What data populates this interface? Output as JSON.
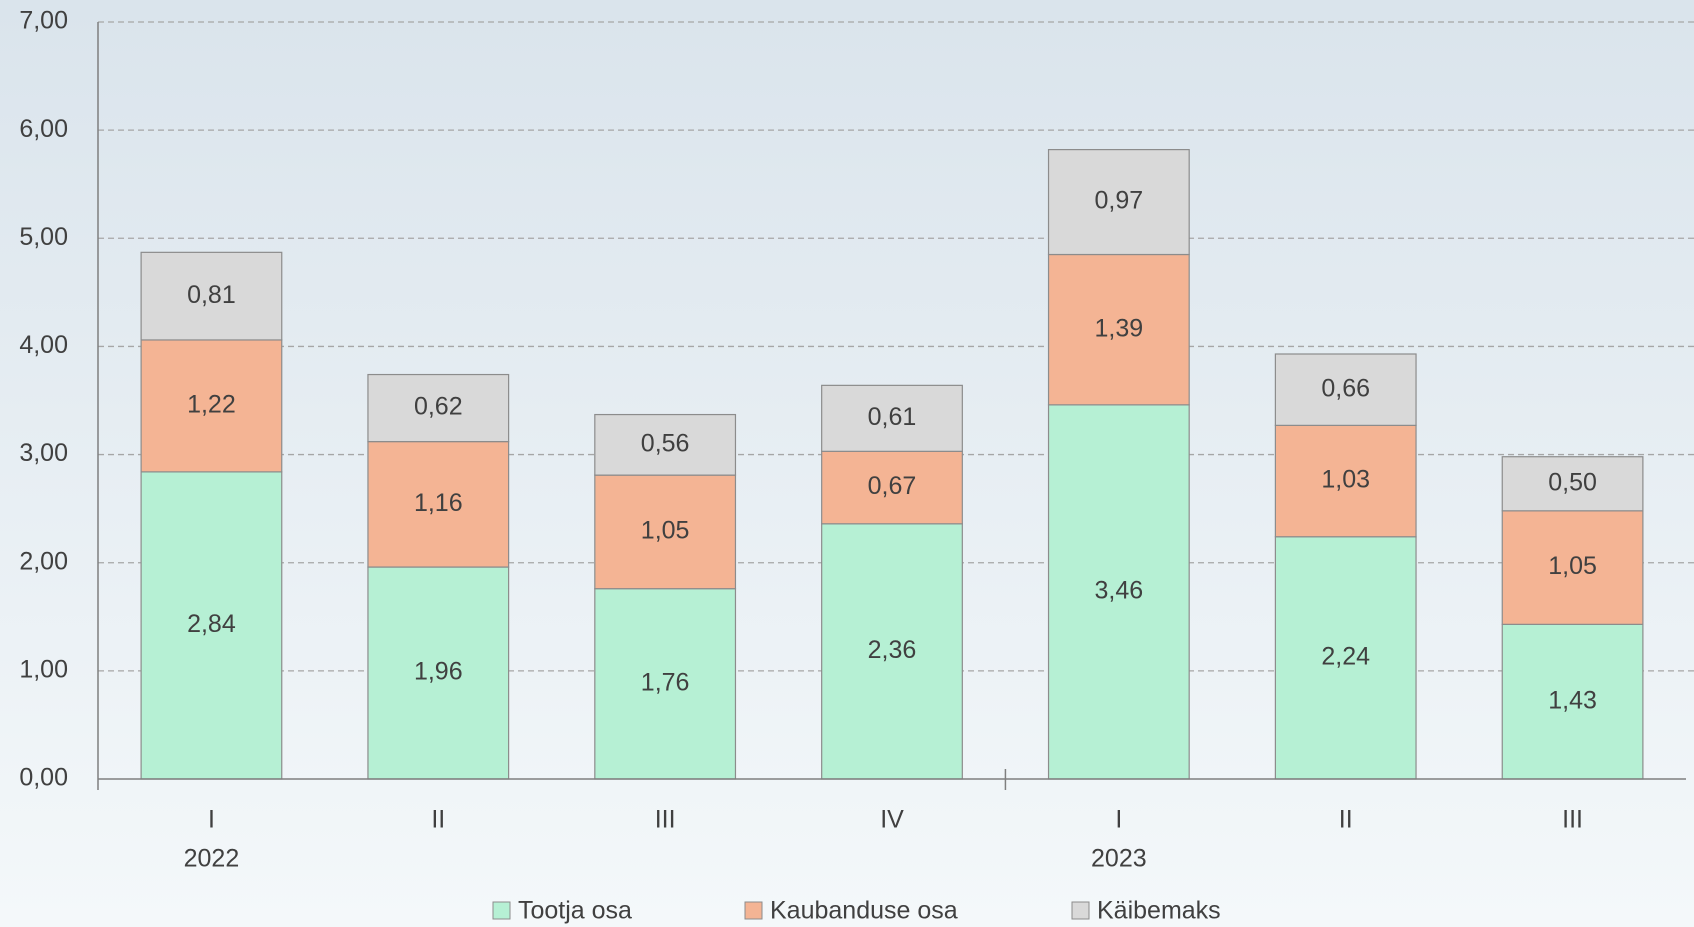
{
  "chart_data": {
    "type": "stacked_bar",
    "categories": [
      "I",
      "II",
      "III",
      "IV",
      "I",
      "II",
      "III"
    ],
    "year_groups": [
      {
        "name": "2022",
        "count": 4
      },
      {
        "name": "2023",
        "count": 3
      }
    ],
    "series": [
      {
        "name": "Tootja osa",
        "color": "#b6f0d4",
        "values": [
          2.84,
          1.96,
          1.76,
          2.36,
          3.46,
          2.24,
          1.43
        ],
        "value_labels": [
          "2,84",
          "1,96",
          "1,76",
          "2,36",
          "3,46",
          "2,24",
          "1,43"
        ]
      },
      {
        "name": "Kaubanduse osa",
        "color": "#f4b494",
        "values": [
          1.22,
          1.16,
          1.05,
          0.67,
          1.39,
          1.03,
          1.05
        ],
        "value_labels": [
          "1,22",
          "1,16",
          "1,05",
          "0,67",
          "1,39",
          "1,03",
          "1,05"
        ]
      },
      {
        "name": "Käibemaks",
        "color": "#d9d9d9",
        "values": [
          0.81,
          0.62,
          0.56,
          0.61,
          0.97,
          0.66,
          0.5
        ],
        "value_labels": [
          "0,81",
          "0,62",
          "0,56",
          "0,61",
          "0,97",
          "0,66",
          "0,50"
        ]
      }
    ],
    "ylim": [
      0,
      7
    ],
    "yticks": [
      {
        "value": 0,
        "label": "0,00"
      },
      {
        "value": 1,
        "label": "1,00"
      },
      {
        "value": 2,
        "label": "2,00"
      },
      {
        "value": 3,
        "label": "3,00"
      },
      {
        "value": 4,
        "label": "4,00"
      },
      {
        "value": 5,
        "label": "5,00"
      },
      {
        "value": 6,
        "label": "6,00"
      },
      {
        "value": 7,
        "label": "7,00"
      }
    ],
    "grid": true
  }
}
